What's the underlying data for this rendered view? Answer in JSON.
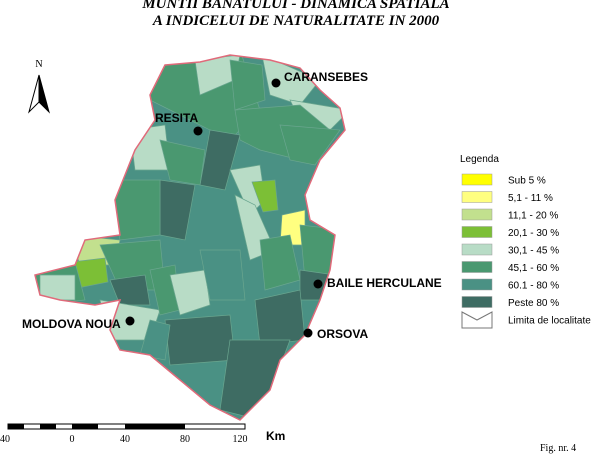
{
  "title": [
    "MUNTII BANATULUI -  DINAMICA SPATIALA",
    "A INDICELUI DE NATURALITATE IN 2000"
  ],
  "north": "N",
  "cities": [
    "CARANSEBES",
    "RESITA",
    "BAILE HERCULANE",
    "MOLDOVA NOUA",
    "ORSOVA"
  ],
  "legend": {
    "title": "Legenda",
    "items": [
      {
        "label": "Sub 5 %",
        "color": "#ffff00"
      },
      {
        "label": "5,1 -  11 %",
        "color": "#ffff80"
      },
      {
        "label": "11,1 - 20 %",
        "color": "#c2e08e"
      },
      {
        "label": "20,1 - 30 %",
        "color": "#7cbf36"
      },
      {
        "label": "30,1 - 45 %",
        "color": "#b8dcc6"
      },
      {
        "label": "45,1 - 60 %",
        "color": "#4a9870"
      },
      {
        "label": "60.1 - 80 %",
        "color": "#4a9184"
      },
      {
        "label": "Peste  80 %",
        "color": "#3e6c63"
      },
      {
        "label": "Limita de localitate"
      }
    ]
  },
  "scale": {
    "labels": [
      "40",
      "0",
      "40",
      "80",
      "120"
    ],
    "unit": "Km"
  },
  "figure": "Fig. nr. 4"
}
